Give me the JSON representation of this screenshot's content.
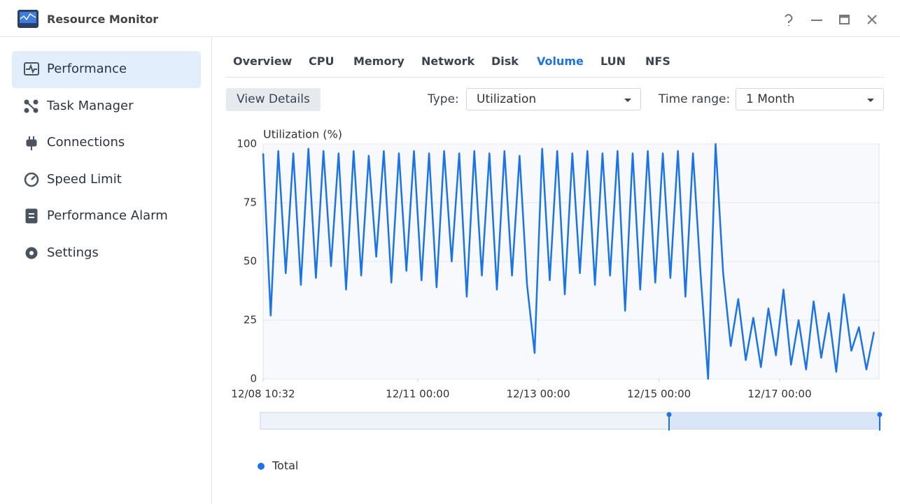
{
  "window": {
    "title": "Resource Monitor"
  },
  "sidebar": {
    "selected": 0,
    "items": [
      "Performance",
      "Task Manager",
      "Connections",
      "Speed Limit",
      "Performance Alarm",
      "Settings"
    ]
  },
  "tabs": {
    "active": 5,
    "items": [
      "Overview",
      "CPU",
      "Memory",
      "Network",
      "Disk",
      "Volume",
      "LUN",
      "NFS"
    ]
  },
  "toolbar": {
    "button": "View Details",
    "type_label": "Type:",
    "type_value": "Utilization",
    "range_label": "Time range:",
    "range_value": "1 Month"
  },
  "chart_data": {
    "type": "line",
    "y_label": "Utilization (%)",
    "x": [
      0,
      3,
      6,
      9,
      12,
      15,
      18,
      21,
      24,
      27,
      30,
      33,
      36,
      39,
      42,
      45,
      48,
      51,
      54,
      57,
      60,
      63,
      66,
      69,
      72,
      75,
      78,
      81,
      84,
      87,
      90,
      93,
      96,
      99,
      102,
      105,
      108,
      111,
      114,
      117,
      120,
      123,
      126,
      129,
      132,
      135,
      138,
      141,
      144,
      147,
      150,
      153,
      156,
      159,
      162,
      165,
      168,
      171,
      174,
      177,
      180,
      183,
      186,
      189,
      192,
      195,
      198,
      201,
      204,
      207,
      210,
      213,
      216,
      219,
      222,
      225,
      228,
      231,
      234,
      237,
      240,
      243
    ],
    "series": [
      {
        "name": "Total",
        "color": "#1a73e8",
        "values": [
          96,
          27,
          97,
          45,
          96,
          40,
          98,
          43,
          97,
          48,
          96,
          38,
          97,
          44,
          95,
          52,
          97,
          41,
          96,
          46,
          97,
          42,
          96,
          39,
          97,
          50,
          96,
          35,
          97,
          44,
          96,
          38,
          97,
          44,
          95,
          40,
          11,
          98,
          42,
          97,
          36,
          96,
          45,
          97,
          40,
          96,
          44,
          97,
          29,
          96,
          38,
          97,
          41,
          96,
          43,
          97,
          35,
          96,
          45,
          0,
          100,
          45,
          14,
          34,
          8,
          26,
          5,
          30,
          10,
          38,
          6,
          25,
          4,
          33,
          9,
          28,
          3,
          36,
          12,
          22,
          4,
          20
        ]
      }
    ],
    "xlim": [
      0,
      245
    ],
    "xticks": [
      {
        "value": 0,
        "label": "12/08 10:32"
      },
      {
        "value": 61.47,
        "label": "12/11 00:00"
      },
      {
        "value": 109.47,
        "label": "12/13 00:00"
      },
      {
        "value": 157.47,
        "label": "12/15 00:00"
      },
      {
        "value": 205.47,
        "label": "12/17 00:00"
      }
    ],
    "ylim": [
      0,
      100
    ],
    "yticks": [
      0,
      25,
      50,
      75,
      100
    ],
    "grid": true,
    "legend": "bottom-left"
  }
}
